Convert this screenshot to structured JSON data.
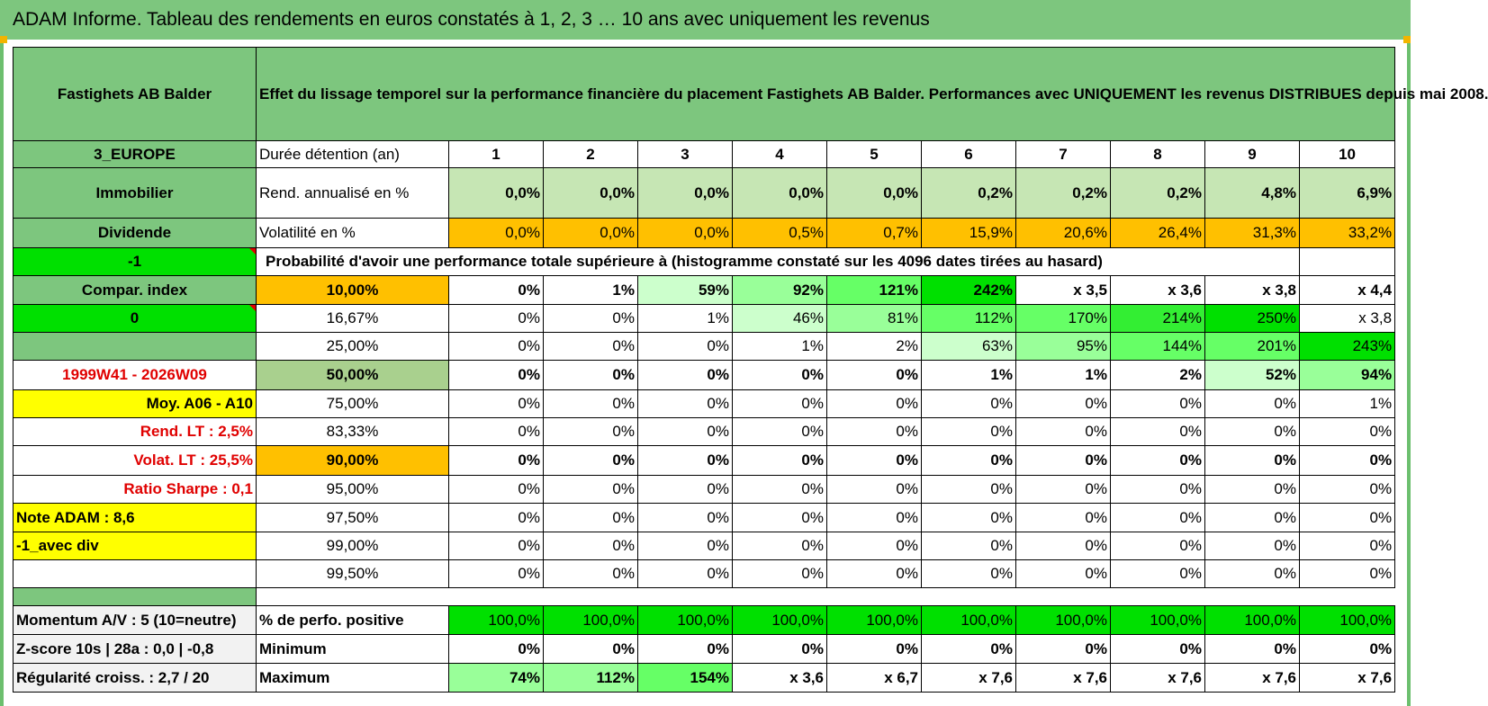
{
  "page_title": "ADAM Informe. Tableau des rendements en euros constatés à 1, 2, 3 … 10 ans avec uniquement les revenus",
  "header": {
    "fund_name": "Fastighets AB Balder",
    "description": "Effet du lissage temporel sur la performance financière du placement Fastighets AB Balder. Performances avec UNIQUEMENT les revenus DISTRIBUES depuis mai 2008."
  },
  "left_labels": {
    "zone": "3_EUROPE",
    "category": "Immobilier",
    "type": "Dividende",
    "minus_one": "-1",
    "compar_index": "Compar. index",
    "zero": "0",
    "period": "1999W41 - 2026W09",
    "moy": "Moy. A06 - A10",
    "rend_lt": "Rend. LT :   2,5%",
    "volat_lt": "Volat. LT :   25,5%",
    "sharpe": "Ratio Sharpe :    0,1",
    "note": "Note ADAM : 8,6",
    "avec_div": "-1_avec div",
    "momentum": "Momentum A/V : 5 (10=neutre)",
    "zscore": "Z-score 10s | 28a : 0,0 | -0,8",
    "regularite": "Régularité croiss. : 2,7 / 20"
  },
  "rows": {
    "duree_label": "Durée détention (an)",
    "years": [
      "1",
      "2",
      "3",
      "4",
      "5",
      "6",
      "7",
      "8",
      "9",
      "10"
    ],
    "rend_label": "Rend. annualisé en %",
    "rend": [
      "0,0%",
      "0,0%",
      "0,0%",
      "0,0%",
      "0,0%",
      "0,2%",
      "0,2%",
      "0,2%",
      "4,8%",
      "6,9%"
    ],
    "vol_label": "Volatilité en %",
    "vol": [
      "0,0%",
      "0,0%",
      "0,0%",
      "0,5%",
      "0,7%",
      "15,9%",
      "20,6%",
      "26,4%",
      "31,3%",
      "33,2%"
    ],
    "proba_label": "Probabilité d'avoir une performance totale supérieure à (histogramme constaté sur les 4096 dates tirées au hasard)"
  },
  "proba": [
    {
      "pct": "10,00%",
      "vals": [
        "0%",
        "1%",
        "59%",
        "92%",
        "121%",
        "242%",
        "x 3,5",
        "x 3,6",
        "x 3,8",
        "x 4,4"
      ]
    },
    {
      "pct": "16,67%",
      "vals": [
        "0%",
        "0%",
        "1%",
        "46%",
        "81%",
        "112%",
        "170%",
        "214%",
        "250%",
        "x 3,8"
      ]
    },
    {
      "pct": "25,00%",
      "vals": [
        "0%",
        "0%",
        "0%",
        "1%",
        "2%",
        "63%",
        "95%",
        "144%",
        "201%",
        "243%"
      ]
    },
    {
      "pct": "50,00%",
      "vals": [
        "0%",
        "0%",
        "0%",
        "0%",
        "0%",
        "1%",
        "1%",
        "2%",
        "52%",
        "94%"
      ]
    },
    {
      "pct": "75,00%",
      "vals": [
        "0%",
        "0%",
        "0%",
        "0%",
        "0%",
        "0%",
        "0%",
        "0%",
        "0%",
        "1%"
      ]
    },
    {
      "pct": "83,33%",
      "vals": [
        "0%",
        "0%",
        "0%",
        "0%",
        "0%",
        "0%",
        "0%",
        "0%",
        "0%",
        "0%"
      ]
    },
    {
      "pct": "90,00%",
      "vals": [
        "0%",
        "0%",
        "0%",
        "0%",
        "0%",
        "0%",
        "0%",
        "0%",
        "0%",
        "0%"
      ]
    },
    {
      "pct": "95,00%",
      "vals": [
        "0%",
        "0%",
        "0%",
        "0%",
        "0%",
        "0%",
        "0%",
        "0%",
        "0%",
        "0%"
      ]
    },
    {
      "pct": "97,50%",
      "vals": [
        "0%",
        "0%",
        "0%",
        "0%",
        "0%",
        "0%",
        "0%",
        "0%",
        "0%",
        "0%"
      ]
    },
    {
      "pct": "99,00%",
      "vals": [
        "0%",
        "0%",
        "0%",
        "0%",
        "0%",
        "0%",
        "0%",
        "0%",
        "0%",
        "0%"
      ]
    },
    {
      "pct": "99,50%",
      "vals": [
        "0%",
        "0%",
        "0%",
        "0%",
        "0%",
        "0%",
        "0%",
        "0%",
        "0%",
        "0%"
      ]
    }
  ],
  "summary": {
    "positive_label": "% de perfo. positive",
    "positive": [
      "100,0%",
      "100,0%",
      "100,0%",
      "100,0%",
      "100,0%",
      "100,0%",
      "100,0%",
      "100,0%",
      "100,0%",
      "100,0%"
    ],
    "min_label": "Minimum",
    "min": [
      "0%",
      "0%",
      "0%",
      "0%",
      "0%",
      "0%",
      "0%",
      "0%",
      "0%",
      "0%"
    ],
    "max_label": "Maximum",
    "max": [
      "74%",
      "112%",
      "154%",
      "x 3,6",
      "x 6,7",
      "x 7,6",
      "x 7,6",
      "x 7,6",
      "x 7,6",
      "x 7,6"
    ]
  }
}
